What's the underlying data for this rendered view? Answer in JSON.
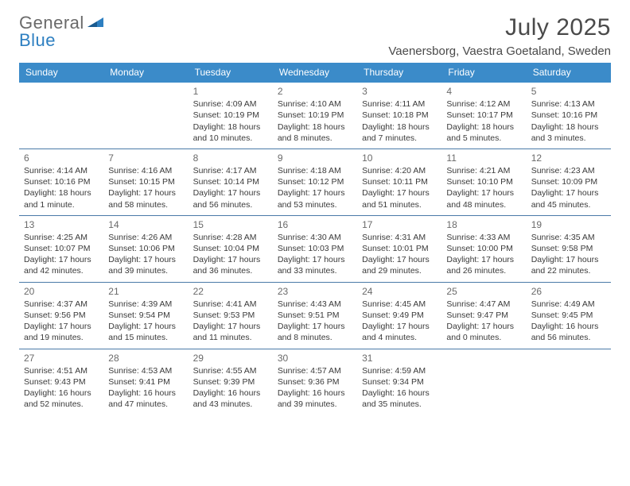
{
  "logo": {
    "word1": "General",
    "word2": "Blue"
  },
  "header": {
    "title": "July 2025",
    "location": "Vaenersborg, Vaestra Goetaland, Sweden"
  },
  "colors": {
    "header_bg": "#3b8bc9",
    "header_text": "#ffffff",
    "row_border": "#4a7aa8",
    "text": "#3a3a3a",
    "muted": "#6a6a6a",
    "logo_blue": "#2d7fc1"
  },
  "day_names": [
    "Sunday",
    "Monday",
    "Tuesday",
    "Wednesday",
    "Thursday",
    "Friday",
    "Saturday"
  ],
  "weeks": [
    [
      null,
      null,
      {
        "d": "1",
        "sr": "Sunrise: 4:09 AM",
        "ss": "Sunset: 10:19 PM",
        "dl": "Daylight: 18 hours and 10 minutes."
      },
      {
        "d": "2",
        "sr": "Sunrise: 4:10 AM",
        "ss": "Sunset: 10:19 PM",
        "dl": "Daylight: 18 hours and 8 minutes."
      },
      {
        "d": "3",
        "sr": "Sunrise: 4:11 AM",
        "ss": "Sunset: 10:18 PM",
        "dl": "Daylight: 18 hours and 7 minutes."
      },
      {
        "d": "4",
        "sr": "Sunrise: 4:12 AM",
        "ss": "Sunset: 10:17 PM",
        "dl": "Daylight: 18 hours and 5 minutes."
      },
      {
        "d": "5",
        "sr": "Sunrise: 4:13 AM",
        "ss": "Sunset: 10:16 PM",
        "dl": "Daylight: 18 hours and 3 minutes."
      }
    ],
    [
      {
        "d": "6",
        "sr": "Sunrise: 4:14 AM",
        "ss": "Sunset: 10:16 PM",
        "dl": "Daylight: 18 hours and 1 minute."
      },
      {
        "d": "7",
        "sr": "Sunrise: 4:16 AM",
        "ss": "Sunset: 10:15 PM",
        "dl": "Daylight: 17 hours and 58 minutes."
      },
      {
        "d": "8",
        "sr": "Sunrise: 4:17 AM",
        "ss": "Sunset: 10:14 PM",
        "dl": "Daylight: 17 hours and 56 minutes."
      },
      {
        "d": "9",
        "sr": "Sunrise: 4:18 AM",
        "ss": "Sunset: 10:12 PM",
        "dl": "Daylight: 17 hours and 53 minutes."
      },
      {
        "d": "10",
        "sr": "Sunrise: 4:20 AM",
        "ss": "Sunset: 10:11 PM",
        "dl": "Daylight: 17 hours and 51 minutes."
      },
      {
        "d": "11",
        "sr": "Sunrise: 4:21 AM",
        "ss": "Sunset: 10:10 PM",
        "dl": "Daylight: 17 hours and 48 minutes."
      },
      {
        "d": "12",
        "sr": "Sunrise: 4:23 AM",
        "ss": "Sunset: 10:09 PM",
        "dl": "Daylight: 17 hours and 45 minutes."
      }
    ],
    [
      {
        "d": "13",
        "sr": "Sunrise: 4:25 AM",
        "ss": "Sunset: 10:07 PM",
        "dl": "Daylight: 17 hours and 42 minutes."
      },
      {
        "d": "14",
        "sr": "Sunrise: 4:26 AM",
        "ss": "Sunset: 10:06 PM",
        "dl": "Daylight: 17 hours and 39 minutes."
      },
      {
        "d": "15",
        "sr": "Sunrise: 4:28 AM",
        "ss": "Sunset: 10:04 PM",
        "dl": "Daylight: 17 hours and 36 minutes."
      },
      {
        "d": "16",
        "sr": "Sunrise: 4:30 AM",
        "ss": "Sunset: 10:03 PM",
        "dl": "Daylight: 17 hours and 33 minutes."
      },
      {
        "d": "17",
        "sr": "Sunrise: 4:31 AM",
        "ss": "Sunset: 10:01 PM",
        "dl": "Daylight: 17 hours and 29 minutes."
      },
      {
        "d": "18",
        "sr": "Sunrise: 4:33 AM",
        "ss": "Sunset: 10:00 PM",
        "dl": "Daylight: 17 hours and 26 minutes."
      },
      {
        "d": "19",
        "sr": "Sunrise: 4:35 AM",
        "ss": "Sunset: 9:58 PM",
        "dl": "Daylight: 17 hours and 22 minutes."
      }
    ],
    [
      {
        "d": "20",
        "sr": "Sunrise: 4:37 AM",
        "ss": "Sunset: 9:56 PM",
        "dl": "Daylight: 17 hours and 19 minutes."
      },
      {
        "d": "21",
        "sr": "Sunrise: 4:39 AM",
        "ss": "Sunset: 9:54 PM",
        "dl": "Daylight: 17 hours and 15 minutes."
      },
      {
        "d": "22",
        "sr": "Sunrise: 4:41 AM",
        "ss": "Sunset: 9:53 PM",
        "dl": "Daylight: 17 hours and 11 minutes."
      },
      {
        "d": "23",
        "sr": "Sunrise: 4:43 AM",
        "ss": "Sunset: 9:51 PM",
        "dl": "Daylight: 17 hours and 8 minutes."
      },
      {
        "d": "24",
        "sr": "Sunrise: 4:45 AM",
        "ss": "Sunset: 9:49 PM",
        "dl": "Daylight: 17 hours and 4 minutes."
      },
      {
        "d": "25",
        "sr": "Sunrise: 4:47 AM",
        "ss": "Sunset: 9:47 PM",
        "dl": "Daylight: 17 hours and 0 minutes."
      },
      {
        "d": "26",
        "sr": "Sunrise: 4:49 AM",
        "ss": "Sunset: 9:45 PM",
        "dl": "Daylight: 16 hours and 56 minutes."
      }
    ],
    [
      {
        "d": "27",
        "sr": "Sunrise: 4:51 AM",
        "ss": "Sunset: 9:43 PM",
        "dl": "Daylight: 16 hours and 52 minutes."
      },
      {
        "d": "28",
        "sr": "Sunrise: 4:53 AM",
        "ss": "Sunset: 9:41 PM",
        "dl": "Daylight: 16 hours and 47 minutes."
      },
      {
        "d": "29",
        "sr": "Sunrise: 4:55 AM",
        "ss": "Sunset: 9:39 PM",
        "dl": "Daylight: 16 hours and 43 minutes."
      },
      {
        "d": "30",
        "sr": "Sunrise: 4:57 AM",
        "ss": "Sunset: 9:36 PM",
        "dl": "Daylight: 16 hours and 39 minutes."
      },
      {
        "d": "31",
        "sr": "Sunrise: 4:59 AM",
        "ss": "Sunset: 9:34 PM",
        "dl": "Daylight: 16 hours and 35 minutes."
      },
      null,
      null
    ]
  ]
}
